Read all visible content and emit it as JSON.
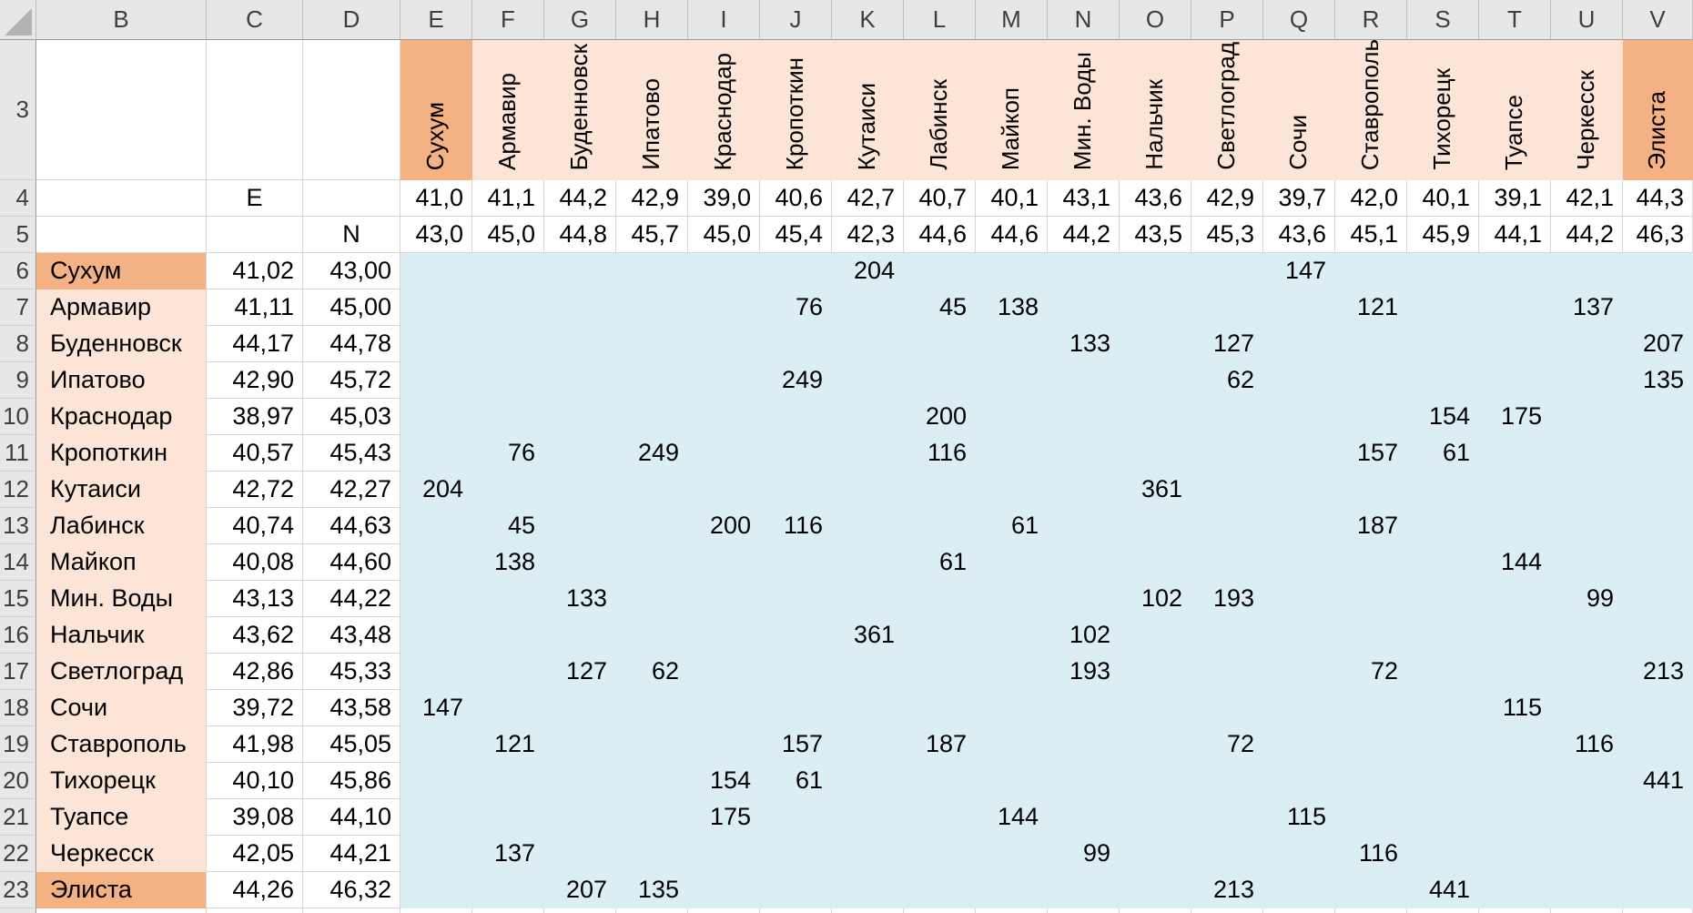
{
  "sheet": {
    "column_letters": [
      "B",
      "C",
      "D",
      "E",
      "F",
      "G",
      "H",
      "I",
      "J",
      "K",
      "L",
      "M",
      "N",
      "O",
      "P",
      "Q",
      "R",
      "S",
      "T",
      "U",
      "V"
    ],
    "row3": {
      "number": "3",
      "city_headers": [
        "Сухум",
        "Армавир",
        "Буденновск",
        "Ипатово",
        "Краснодар",
        "Кропоткин",
        "Кутаиси",
        "Лабинск",
        "Майкоп",
        "Мин. Воды",
        "Нальчик",
        "Светлоград",
        "Сочи",
        "Ставрополь",
        "Тихорецк",
        "Туапсе",
        "Черкесск",
        "Элиста"
      ]
    },
    "row4": {
      "number": "4",
      "label": "E",
      "values": [
        "41,0",
        "41,1",
        "44,2",
        "42,9",
        "39,0",
        "40,6",
        "42,7",
        "40,7",
        "40,1",
        "43,1",
        "43,6",
        "42,9",
        "39,7",
        "42,0",
        "40,1",
        "39,1",
        "42,1",
        "44,3"
      ]
    },
    "row5": {
      "number": "5",
      "label": "N",
      "values": [
        "43,0",
        "45,0",
        "44,8",
        "45,7",
        "45,0",
        "45,4",
        "42,3",
        "44,6",
        "44,6",
        "44,2",
        "43,5",
        "45,3",
        "43,6",
        "45,1",
        "45,9",
        "44,1",
        "44,2",
        "46,3"
      ]
    },
    "data_rows": [
      {
        "number": "6",
        "city": "Сухум",
        "e": "41,02",
        "n": "43,00",
        "highlight": true
      },
      {
        "number": "7",
        "city": "Армавир",
        "e": "41,11",
        "n": "45,00",
        "highlight": false
      },
      {
        "number": "8",
        "city": "Буденновск",
        "e": "44,17",
        "n": "44,78",
        "highlight": false
      },
      {
        "number": "9",
        "city": "Ипатово",
        "e": "42,90",
        "n": "45,72",
        "highlight": false
      },
      {
        "number": "10",
        "city": "Краснодар",
        "e": "38,97",
        "n": "45,03",
        "highlight": false
      },
      {
        "number": "11",
        "city": "Кропоткин",
        "e": "40,57",
        "n": "45,43",
        "highlight": false
      },
      {
        "number": "12",
        "city": "Кутаиси",
        "e": "42,72",
        "n": "42,27",
        "highlight": false
      },
      {
        "number": "13",
        "city": "Лабинск",
        "e": "40,74",
        "n": "44,63",
        "highlight": false
      },
      {
        "number": "14",
        "city": "Майкоп",
        "e": "40,08",
        "n": "44,60",
        "highlight": false
      },
      {
        "number": "15",
        "city": "Мин. Воды",
        "e": "43,13",
        "n": "44,22",
        "highlight": false
      },
      {
        "number": "16",
        "city": "Нальчик",
        "e": "43,62",
        "n": "43,48",
        "highlight": false
      },
      {
        "number": "17",
        "city": "Светлоград",
        "e": "42,86",
        "n": "45,33",
        "highlight": false
      },
      {
        "number": "18",
        "city": "Сочи",
        "e": "39,72",
        "n": "43,58",
        "highlight": false
      },
      {
        "number": "19",
        "city": "Ставрополь",
        "e": "41,98",
        "n": "45,05",
        "highlight": false
      },
      {
        "number": "20",
        "city": "Тихорецк",
        "e": "40,10",
        "n": "45,86",
        "highlight": false
      },
      {
        "number": "21",
        "city": "Туапсе",
        "e": "39,08",
        "n": "44,10",
        "highlight": false
      },
      {
        "number": "22",
        "city": "Черкесск",
        "e": "42,05",
        "n": "44,21",
        "highlight": false
      },
      {
        "number": "23",
        "city": "Элиста",
        "e": "44,26",
        "n": "46,32",
        "highlight": true
      }
    ],
    "matrix": [
      [
        "",
        "",
        "",
        "",
        "",
        "",
        "204",
        "",
        "",
        "",
        "",
        "",
        "147",
        "",
        "",
        "",
        "",
        ""
      ],
      [
        "",
        "",
        "",
        "",
        "",
        "76",
        "",
        "45",
        "138",
        "",
        "",
        "",
        "",
        "121",
        "",
        "",
        "137",
        ""
      ],
      [
        "",
        "",
        "",
        "",
        "",
        "",
        "",
        "",
        "",
        "133",
        "",
        "127",
        "",
        "",
        "",
        "",
        "",
        "207"
      ],
      [
        "",
        "",
        "",
        "",
        "",
        "249",
        "",
        "",
        "",
        "",
        "",
        "62",
        "",
        "",
        "",
        "",
        "",
        "135"
      ],
      [
        "",
        "",
        "",
        "",
        "",
        "",
        "",
        "200",
        "",
        "",
        "",
        "",
        "",
        "",
        "154",
        "175",
        "",
        ""
      ],
      [
        "",
        "76",
        "",
        "249",
        "",
        "",
        "",
        "116",
        "",
        "",
        "",
        "",
        "",
        "157",
        "61",
        "",
        "",
        ""
      ],
      [
        "204",
        "",
        "",
        "",
        "",
        "",
        "",
        "",
        "",
        "",
        "361",
        "",
        "",
        "",
        "",
        "",
        "",
        ""
      ],
      [
        "",
        "45",
        "",
        "",
        "200",
        "116",
        "",
        "",
        "61",
        "",
        "",
        "",
        "",
        "187",
        "",
        "",
        "",
        ""
      ],
      [
        "",
        "138",
        "",
        "",
        "",
        "",
        "",
        "61",
        "",
        "",
        "",
        "",
        "",
        "",
        "",
        "144",
        "",
        ""
      ],
      [
        "",
        "",
        "133",
        "",
        "",
        "",
        "",
        "",
        "",
        "",
        "102",
        "193",
        "",
        "",
        "",
        "",
        "99",
        ""
      ],
      [
        "",
        "",
        "",
        "",
        "",
        "",
        "361",
        "",
        "",
        "102",
        "",
        "",
        "",
        "",
        "",
        "",
        "",
        ""
      ],
      [
        "",
        "",
        "127",
        "62",
        "",
        "",
        "",
        "",
        "",
        "193",
        "",
        "",
        "",
        "72",
        "",
        "",
        "",
        "213"
      ],
      [
        "147",
        "",
        "",
        "",
        "",
        "",
        "",
        "",
        "",
        "",
        "",
        "",
        "",
        "",
        "",
        "115",
        "",
        ""
      ],
      [
        "",
        "121",
        "",
        "",
        "",
        "157",
        "",
        "187",
        "",
        "",
        "",
        "72",
        "",
        "",
        "",
        "",
        "116",
        ""
      ],
      [
        "",
        "",
        "",
        "",
        "154",
        "61",
        "",
        "",
        "",
        "",
        "",
        "",
        "",
        "",
        "",
        "",
        "",
        "441"
      ],
      [
        "",
        "",
        "",
        "",
        "175",
        "",
        "",
        "",
        "144",
        "",
        "",
        "",
        "115",
        "",
        "",
        "",
        "",
        ""
      ],
      [
        "",
        "137",
        "",
        "",
        "",
        "",
        "",
        "",
        "",
        "99",
        "",
        "",
        "",
        "116",
        "",
        "",
        "",
        ""
      ],
      [
        "",
        "",
        "207",
        "135",
        "",
        "",
        "",
        "",
        "",
        "",
        "",
        "213",
        "",
        "",
        "441",
        "",
        "",
        ""
      ]
    ],
    "colors": {
      "band_light": "#FCE4D6",
      "band_dark": "#F4B183",
      "matrix_fill": "#DAEEF3",
      "header_bg": "#E7E7E7",
      "header_text": "#3F3F3F",
      "header_sep": "#BFBFBF",
      "header_edge": "#9B9B9B",
      "gutter_sep": "#D0D0D0",
      "grid_line": "#D6D6D6",
      "cell_text": "#000000"
    }
  }
}
